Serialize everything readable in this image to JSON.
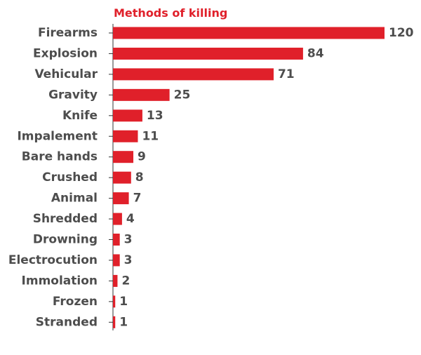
{
  "colors": {
    "bar": "#e0202a",
    "title": "#e0202a",
    "label": "#4d4d4d",
    "axis": "#333333"
  },
  "chart_data": {
    "type": "bar",
    "orientation": "horizontal",
    "title": "Methods of killing",
    "xlabel": "",
    "ylabel": "",
    "xlim": [
      0,
      120
    ],
    "grid": false,
    "legend": "none",
    "categories": [
      "Firearms",
      "Explosion",
      "Vehicular",
      "Gravity",
      "Knife",
      "Impalement",
      "Bare hands",
      "Crushed",
      "Animal",
      "Shredded",
      "Drowning",
      "Electrocution",
      "Immolation",
      "Frozen",
      "Stranded"
    ],
    "values": [
      120,
      84,
      71,
      25,
      13,
      11,
      9,
      8,
      7,
      4,
      3,
      3,
      2,
      1,
      1
    ]
  }
}
